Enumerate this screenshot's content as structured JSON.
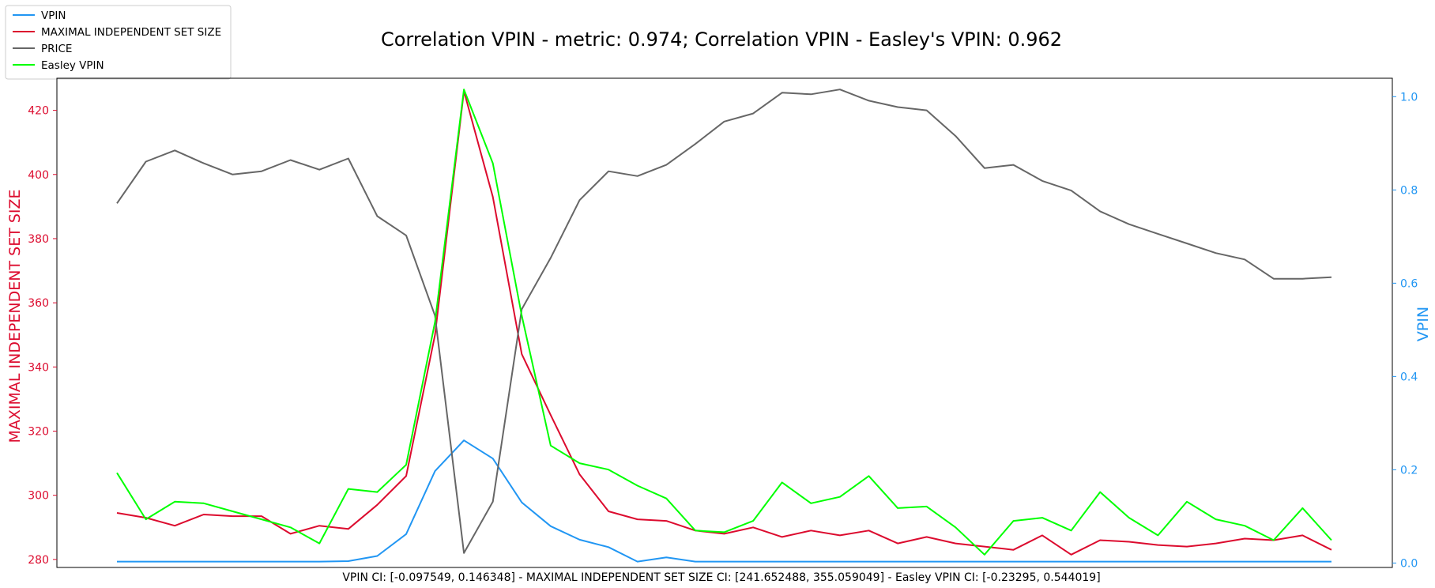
{
  "chart_data": {
    "type": "line",
    "title": "Correlation VPIN - metric: 0.974; Correlation VPIN - Easley's VPIN: 0.962",
    "footer": "VPIN CI: [-0.097549, 0.146348] - MAXIMAL INDEPENDENT SET SIZE CI: [241.652488, 355.059049] - Easley VPIN CI: [-0.23295, 0.544019]",
    "ylabel_left": "MAXIMAL INDEPENDENT SET SIZE",
    "ylabel_right": "VPIN",
    "ylim_left": [
      277.5,
      430.0
    ],
    "ylim_right": [
      -0.0095,
      1.0395
    ],
    "yticks_left": [
      280,
      300,
      320,
      340,
      360,
      380,
      400,
      420
    ],
    "yticks_right": [
      "0.0",
      "0.2",
      "0.4",
      "0.6",
      "0.8",
      "1.0"
    ],
    "grid": false,
    "legend_position": "upper-left-outside",
    "x": [
      0,
      1,
      2,
      3,
      4,
      5,
      6,
      7,
      8,
      9,
      10,
      11,
      12,
      13,
      14,
      15,
      16,
      17,
      18,
      19,
      20,
      21,
      22,
      23,
      24,
      25,
      26,
      27,
      28,
      29,
      30,
      31,
      32,
      33,
      34,
      35,
      36,
      37,
      38,
      39,
      40,
      41,
      42
    ],
    "series": [
      {
        "name": "VPIN",
        "axis": "right",
        "color": "#2196F3",
        "values": [
          0.003,
          0.003,
          0.003,
          0.003,
          0.003,
          0.003,
          0.003,
          0.003,
          0.004,
          0.015,
          0.062,
          0.197,
          0.263,
          0.224,
          0.13,
          0.079,
          0.05,
          0.034,
          0.003,
          0.012,
          0.003,
          0.003,
          0.003,
          0.003,
          0.003,
          0.003,
          0.003,
          0.003,
          0.003,
          0.003,
          0.003,
          0.003,
          0.003,
          0.003,
          0.003,
          0.003,
          0.003,
          0.003,
          0.003,
          0.003,
          0.003,
          0.003,
          0.003
        ]
      },
      {
        "name": "MAXIMAL INDEPENDENT SET SIZE",
        "axis": "left",
        "color": "#DC0B2E",
        "values": [
          294.5,
          293.0,
          290.5,
          294.0,
          293.5,
          293.5,
          288.0,
          290.5,
          289.5,
          297.0,
          306.0,
          350.0,
          426.0,
          393.0,
          344.0,
          325.0,
          306.5,
          295.0,
          292.5,
          292.0,
          289.0,
          288.0,
          290.0,
          287.0,
          289.0,
          287.5,
          289.0,
          285.0,
          287.0,
          285.0,
          284.0,
          283.0,
          287.5,
          281.5,
          286.0,
          285.5,
          284.5,
          284.0,
          285.0,
          286.5,
          286.0,
          287.5,
          283.0
        ]
      },
      {
        "name": "PRICE",
        "axis": "left",
        "color": "#666666",
        "values": [
          391.0,
          404.0,
          407.5,
          403.5,
          400.0,
          401.0,
          404.5,
          401.5,
          405.0,
          387.0,
          381.0,
          356.0,
          282.0,
          298.0,
          358.0,
          374.0,
          392.0,
          401.0,
          399.5,
          403.0,
          409.5,
          416.5,
          419.0,
          425.5,
          425.0,
          426.5,
          423.0,
          421.0,
          420.0,
          412.0,
          402.0,
          403.0,
          398.0,
          395.0,
          388.5,
          384.5,
          381.5,
          378.5,
          375.5,
          373.5,
          367.5,
          367.5,
          368.0
        ]
      },
      {
        "name": "Easley VPIN",
        "axis": "left",
        "color": "#00FF00",
        "values": [
          307.0,
          292.5,
          298.0,
          297.5,
          295.0,
          292.5,
          290.0,
          285.0,
          302.0,
          301.0,
          309.5,
          354.0,
          426.5,
          403.5,
          356.0,
          315.5,
          310.0,
          308.0,
          303.0,
          299.0,
          289.0,
          288.5,
          292.0,
          304.0,
          297.5,
          299.5,
          306.0,
          296.0,
          296.5,
          290.0,
          281.5,
          292.0,
          293.0,
          289.0,
          301.0,
          293.0,
          287.5,
          298.0,
          292.5,
          290.5,
          286.0,
          296.0,
          286.0
        ]
      }
    ]
  }
}
